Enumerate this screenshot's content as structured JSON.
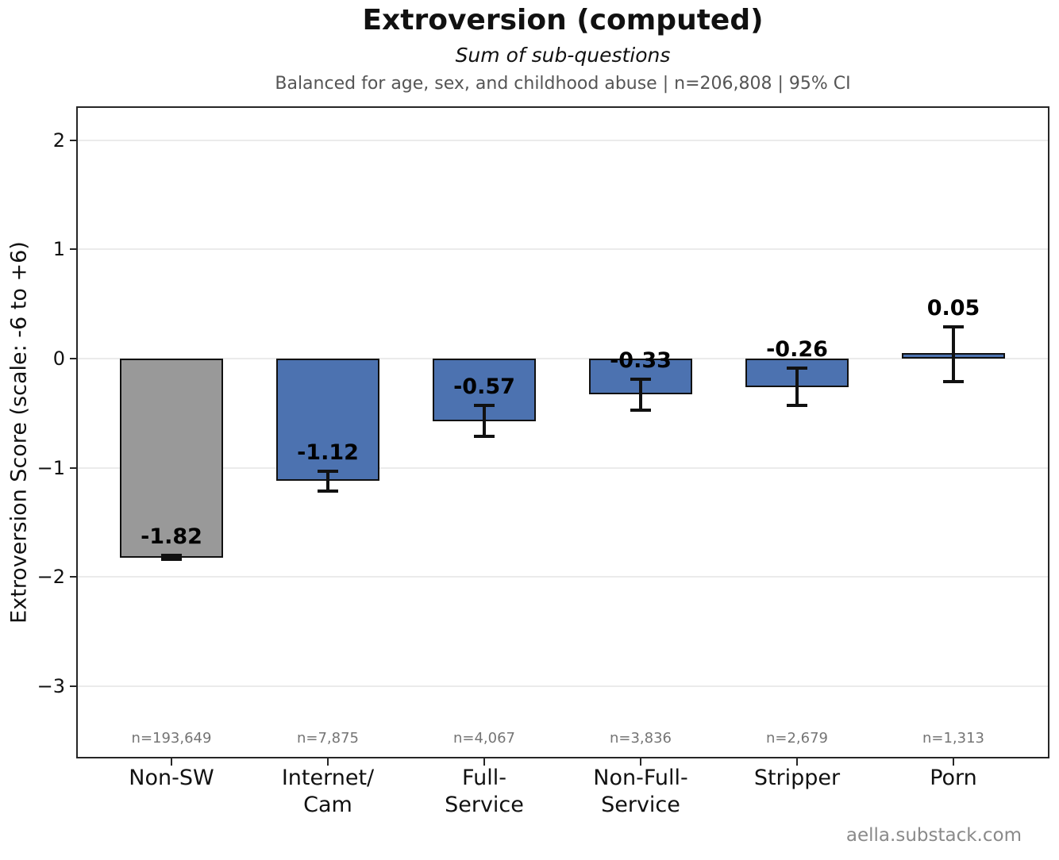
{
  "watermark": "aella.substack.com",
  "chart_data": {
    "type": "bar",
    "title": "Extroversion (computed)",
    "subtitle": "Sum of sub-questions",
    "note": "Balanced for age, sex, and childhood abuse  |  n=206,808  |  95% CI",
    "ylabel": "Extroversion Score (scale: -6 to +6)",
    "xlabel": "",
    "ylim": [
      -3.66,
      2.31
    ],
    "yticks": [
      2,
      1,
      0,
      -1,
      -2,
      -3
    ],
    "ytick_labels": [
      "2",
      "1",
      "0",
      "−1",
      "−2",
      "−3"
    ],
    "grid": true,
    "legend_position": "none",
    "categories": [
      "Non-SW",
      "Internet/\nCam",
      "Full-\nService",
      "Non-Full-\nService",
      "Stripper",
      "Porn"
    ],
    "values": [
      -1.82,
      -1.12,
      -0.57,
      -0.33,
      -0.26,
      0.05
    ],
    "value_labels": [
      "-1.82",
      "-1.12",
      "-0.57",
      "-0.33",
      "-0.26",
      "0.05"
    ],
    "ci_upper": [
      -1.8,
      -1.03,
      -0.43,
      -0.19,
      -0.09,
      0.29
    ],
    "ci_lower": [
      -1.84,
      -1.21,
      -0.71,
      -0.47,
      -0.43,
      -0.21
    ],
    "sample_sizes": [
      "n=193,649",
      "n=7,875",
      "n=4,067",
      "n=3,836",
      "n=2,679",
      "n=1,313"
    ],
    "colors": {
      "bars": [
        "#999999",
        "#4c72b0",
        "#4c72b0",
        "#4c72b0",
        "#4c72b0",
        "#4c72b0"
      ],
      "bar_edge": "#111111",
      "error": "#111111",
      "grid": "#ebebeb",
      "spine": "#262626",
      "note_text": "#555555",
      "sample_text": "#757575",
      "watermark_text": "#8a8a8a"
    }
  }
}
